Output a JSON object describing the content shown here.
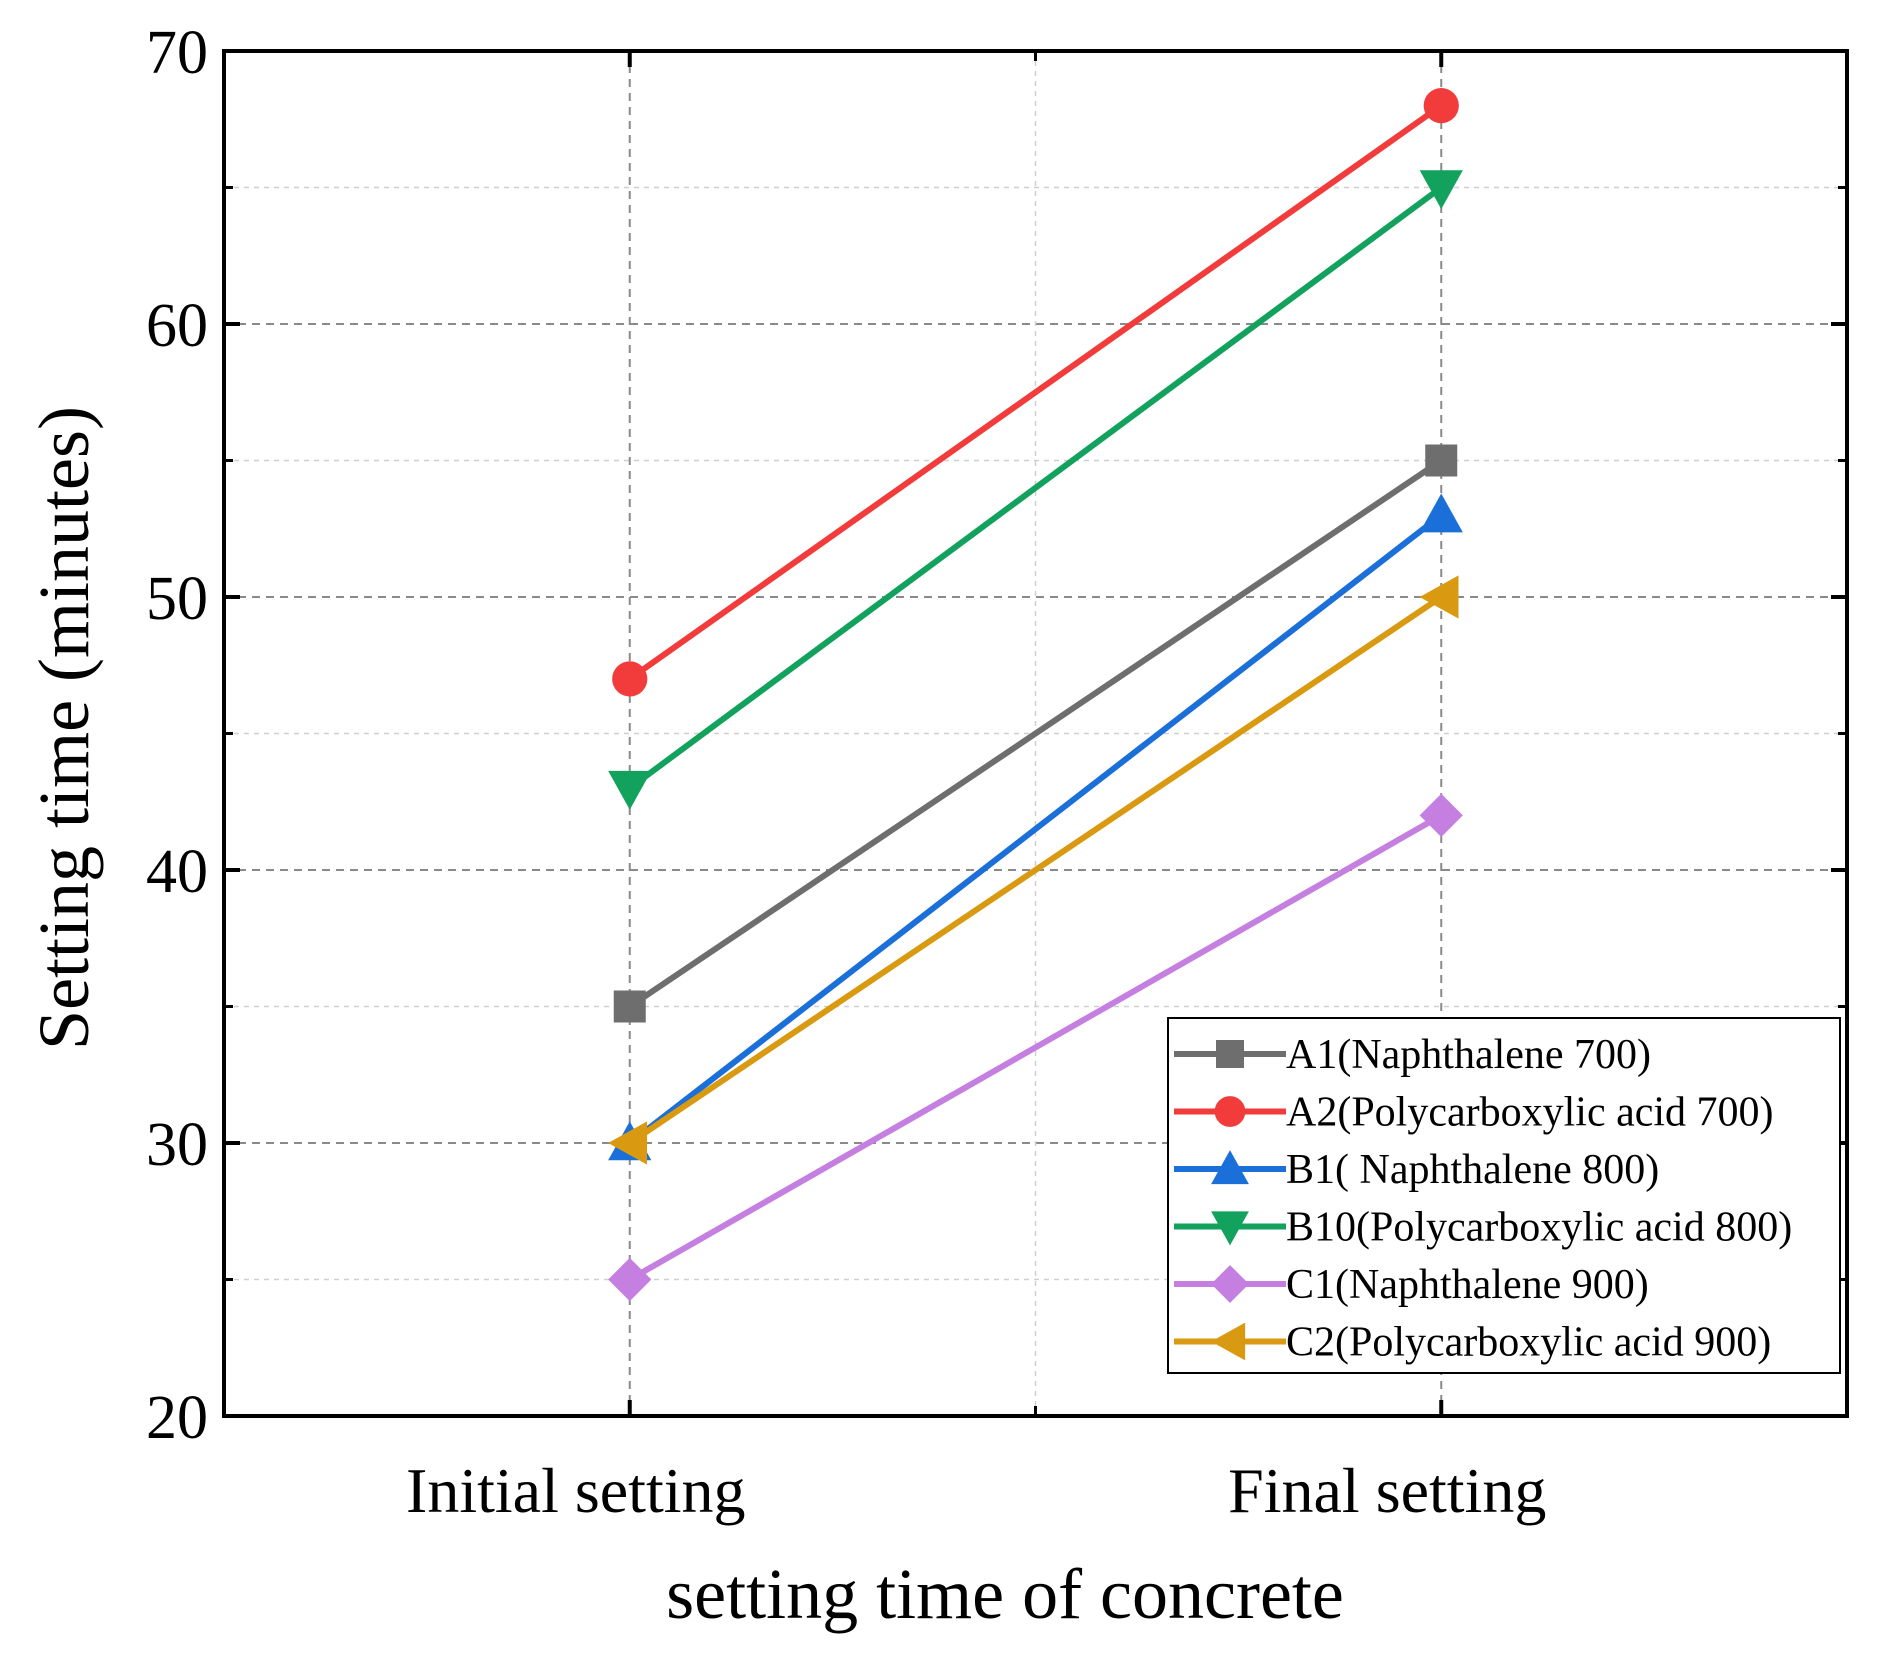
{
  "chart_data": {
    "type": "line",
    "title": "",
    "xlabel": "setting time of concrete",
    "ylabel": "Setting time (minutes)",
    "categories": [
      "Initial setting",
      "Final setting"
    ],
    "ylim": [
      20,
      70
    ],
    "yticks": [
      "20",
      "30",
      "40",
      "50",
      "60",
      "70"
    ],
    "grid": true,
    "legend_position": "bottom-right",
    "series": [
      {
        "name": "A1(Naphthalene 700)",
        "values": [
          35,
          55
        ],
        "color": "#6e6e6e",
        "marker": "square"
      },
      {
        "name": "A2(Polycarboxylic acid 700)",
        "values": [
          47,
          68
        ],
        "color": "#f23b3b",
        "marker": "circle"
      },
      {
        "name": "B1( Naphthalene 800)",
        "values": [
          30,
          53
        ],
        "color": "#1a6fd9",
        "marker": "triangle-up"
      },
      {
        "name": "B10(Polycarboxylic acid 800)",
        "values": [
          43,
          65
        ],
        "color": "#12a25e",
        "marker": "triangle-down"
      },
      {
        "name": "C1(Naphthalene 900)",
        "values": [
          25,
          42
        ],
        "color": "#c47fe0",
        "marker": "diamond"
      },
      {
        "name": "C2(Polycarboxylic acid 900)",
        "values": [
          30,
          50
        ],
        "color": "#d99a12",
        "marker": "triangle-left"
      }
    ]
  }
}
